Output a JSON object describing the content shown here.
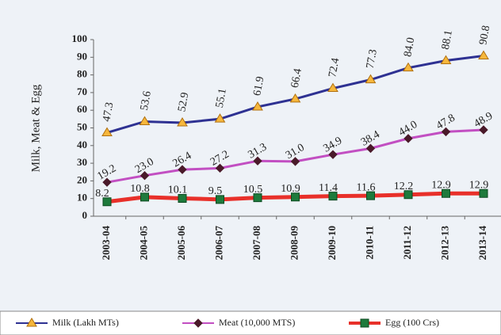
{
  "chart_data": {
    "type": "line",
    "y_label": "Milk, Meat & Egg",
    "categories": [
      "2003-04",
      "2004-05",
      "2005-06",
      "2006-07",
      "2007-08",
      "2008-09",
      "2009-10",
      "2010-11",
      "2011-12",
      "2012-13",
      "2013-14"
    ],
    "series": [
      {
        "name": "Milk (Lakh MTs)",
        "color": "#2e3192",
        "marker_color": "#f6b73c",
        "marker": "triangle",
        "values": [
          47.3,
          53.6,
          52.9,
          55.1,
          61.9,
          66.4,
          72.4,
          77.3,
          84.0,
          88.1,
          90.8
        ],
        "value_labels": [
          "47.3",
          "53.6",
          "52.9",
          "55.1",
          "61.9",
          "66.4",
          "72.4",
          "77.3",
          "84.0",
          "88.1",
          "90.8"
        ]
      },
      {
        "name": "Meat (10,000 MTS)",
        "color": "#c24fc2",
        "marker_color": "#4a1a2a",
        "marker": "diamond",
        "values": [
          19.2,
          23.0,
          26.4,
          27.2,
          31.3,
          31.0,
          34.9,
          38.4,
          44.0,
          47.8,
          48.9
        ],
        "value_labels": [
          "19.2",
          "23.0",
          "26.4",
          "27.2",
          "31.3",
          "31.0",
          "34.9",
          "38.4",
          "44.0",
          "47.8",
          "48.9"
        ]
      },
      {
        "name": "Egg (100 Crs)",
        "color": "#e8302a",
        "marker_color": "#1e7a3c",
        "marker": "square",
        "values": [
          8.2,
          10.8,
          10.1,
          9.5,
          10.5,
          10.9,
          11.4,
          11.6,
          12.2,
          12.9,
          12.9
        ],
        "value_labels": [
          "8.2",
          "10.8",
          "10.1",
          "9.5",
          "10.5",
          "10.9",
          "11.4",
          "11.6",
          "12.2",
          "12.9",
          "12.9"
        ]
      }
    ],
    "ylim": [
      0,
      100
    ],
    "yticks": [
      0,
      10,
      20,
      30,
      40,
      50,
      60,
      70,
      80,
      90,
      100
    ]
  }
}
